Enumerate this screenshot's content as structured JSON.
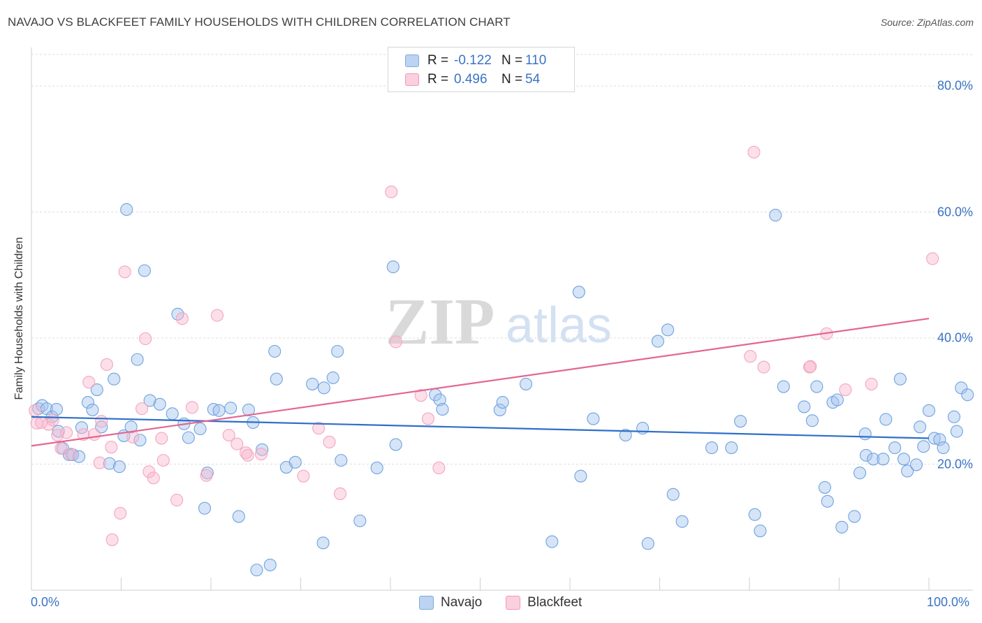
{
  "header": {
    "title": "NAVAJO VS BLACKFEET FAMILY HOUSEHOLDS WITH CHILDREN CORRELATION CHART",
    "source": "Source: ZipAtlas.com"
  },
  "watermark": {
    "zip": "ZIP",
    "atlas": "atlas"
  },
  "legend": {
    "navajo": {
      "r_label": "R =",
      "r_value": "-0.122",
      "n_label": "N =",
      "n_value": "110"
    },
    "blackfeet": {
      "r_label": "R =",
      "r_value": "0.496",
      "n_label": "N =",
      "n_value": "54"
    }
  },
  "chart_data": {
    "type": "scatter",
    "title": "NAVAJO VS BLACKFEET FAMILY HOUSEHOLDS WITH CHILDREN CORRELATION CHART",
    "ylabel": "Family Households with Children",
    "xlim": [
      0,
      100
    ],
    "ylim": [
      0,
      85
    ],
    "x_tick_labels": [
      "0.0%",
      "100.0%"
    ],
    "y_ticks": [
      {
        "value": 20,
        "label": "20.0%"
      },
      {
        "value": 40,
        "label": "40.0%"
      },
      {
        "value": 60,
        "label": "60.0%"
      },
      {
        "value": 80,
        "label": "80.0%"
      }
    ],
    "grid": true,
    "legend_position": "top-center",
    "series": [
      {
        "name": "Navajo",
        "color": "#6ea3e0",
        "line_color": "#2f6fc9",
        "trend": {
          "x": [
            0,
            100
          ],
          "y": [
            27.5,
            24.1
          ]
        },
        "points": [
          [
            0.8,
            28.8
          ],
          [
            1.2,
            29.3
          ],
          [
            1.7,
            28.8
          ],
          [
            2.3,
            27.5
          ],
          [
            2.8,
            28.7
          ],
          [
            3.0,
            25.2
          ],
          [
            3.5,
            22.5
          ],
          [
            4.2,
            21.5
          ],
          [
            4.6,
            21.5
          ],
          [
            5.3,
            21.2
          ],
          [
            5.6,
            25.8
          ],
          [
            6.3,
            29.8
          ],
          [
            6.8,
            28.6
          ],
          [
            7.3,
            31.8
          ],
          [
            7.8,
            25.9
          ],
          [
            8.7,
            20.1
          ],
          [
            9.2,
            33.5
          ],
          [
            9.8,
            19.6
          ],
          [
            10.3,
            24.5
          ],
          [
            10.6,
            60.4
          ],
          [
            11.1,
            25.9
          ],
          [
            11.8,
            36.6
          ],
          [
            12.1,
            23.8
          ],
          [
            12.6,
            50.7
          ],
          [
            13.2,
            30.1
          ],
          [
            14.3,
            29.5
          ],
          [
            15.7,
            28.0
          ],
          [
            16.3,
            43.8
          ],
          [
            17.0,
            26.4
          ],
          [
            17.5,
            24.2
          ],
          [
            18.8,
            25.6
          ],
          [
            19.3,
            13.0
          ],
          [
            19.6,
            18.6
          ],
          [
            20.3,
            28.7
          ],
          [
            20.9,
            28.5
          ],
          [
            22.2,
            28.9
          ],
          [
            23.1,
            11.7
          ],
          [
            24.2,
            28.6
          ],
          [
            24.7,
            26.6
          ],
          [
            25.1,
            3.2
          ],
          [
            25.7,
            22.3
          ],
          [
            26.6,
            4.0
          ],
          [
            27.1,
            37.9
          ],
          [
            27.3,
            33.5
          ],
          [
            28.4,
            19.5
          ],
          [
            29.4,
            20.3
          ],
          [
            31.3,
            32.7
          ],
          [
            32.5,
            7.5
          ],
          [
            32.6,
            32.1
          ],
          [
            33.6,
            33.7
          ],
          [
            34.1,
            37.9
          ],
          [
            34.5,
            20.6
          ],
          [
            36.6,
            11.0
          ],
          [
            38.5,
            19.4
          ],
          [
            40.3,
            51.3
          ],
          [
            40.6,
            23.1
          ],
          [
            45.0,
            31.0
          ],
          [
            45.5,
            30.2
          ],
          [
            45.8,
            28.7
          ],
          [
            52.2,
            28.6
          ],
          [
            52.5,
            29.8
          ],
          [
            55.1,
            32.7
          ],
          [
            58.0,
            7.7
          ],
          [
            61.0,
            47.3
          ],
          [
            61.2,
            18.1
          ],
          [
            62.6,
            27.2
          ],
          [
            66.2,
            24.6
          ],
          [
            68.1,
            25.7
          ],
          [
            68.7,
            7.4
          ],
          [
            69.8,
            39.5
          ],
          [
            70.9,
            41.3
          ],
          [
            71.5,
            15.2
          ],
          [
            72.5,
            10.9
          ],
          [
            75.8,
            22.6
          ],
          [
            78.0,
            22.6
          ],
          [
            79.0,
            26.8
          ],
          [
            80.6,
            12.0
          ],
          [
            81.2,
            9.4
          ],
          [
            82.9,
            59.5
          ],
          [
            83.8,
            32.3
          ],
          [
            86.1,
            29.1
          ],
          [
            87.0,
            26.9
          ],
          [
            87.5,
            32.3
          ],
          [
            88.4,
            16.3
          ],
          [
            88.7,
            14.1
          ],
          [
            89.3,
            29.8
          ],
          [
            89.8,
            30.2
          ],
          [
            90.3,
            10.0
          ],
          [
            91.7,
            11.7
          ],
          [
            92.3,
            18.6
          ],
          [
            92.9,
            24.8
          ],
          [
            93.0,
            21.4
          ],
          [
            93.8,
            20.8
          ],
          [
            94.9,
            20.8
          ],
          [
            95.2,
            27.1
          ],
          [
            96.2,
            22.6
          ],
          [
            96.8,
            33.5
          ],
          [
            97.2,
            20.8
          ],
          [
            97.6,
            18.9
          ],
          [
            98.6,
            19.9
          ],
          [
            99.0,
            25.9
          ],
          [
            99.4,
            22.8
          ],
          [
            100.0,
            28.5
          ],
          [
            100.6,
            24.1
          ],
          [
            101.2,
            23.9
          ],
          [
            101.6,
            22.6
          ],
          [
            102.8,
            27.5
          ],
          [
            103.1,
            25.2
          ],
          [
            103.6,
            32.1
          ],
          [
            104.3,
            31.0
          ]
        ]
      },
      {
        "name": "Blackfeet",
        "color": "#f4a6bf",
        "line_color": "#e46690",
        "trend": {
          "x": [
            0,
            100
          ],
          "y": [
            22.9,
            43.1
          ]
        },
        "points": [
          [
            0.4,
            28.5
          ],
          [
            0.6,
            26.5
          ],
          [
            1.1,
            26.6
          ],
          [
            1.9,
            26.3
          ],
          [
            2.4,
            27.0
          ],
          [
            2.9,
            24.6
          ],
          [
            3.3,
            22.5
          ],
          [
            3.9,
            25.0
          ],
          [
            4.4,
            21.6
          ],
          [
            5.8,
            24.7
          ],
          [
            6.4,
            33.0
          ],
          [
            7.0,
            24.7
          ],
          [
            7.6,
            20.2
          ],
          [
            7.8,
            26.8
          ],
          [
            8.4,
            35.8
          ],
          [
            8.9,
            22.7
          ],
          [
            9.0,
            8.0
          ],
          [
            9.9,
            12.2
          ],
          [
            10.4,
            50.5
          ],
          [
            11.3,
            24.3
          ],
          [
            12.3,
            28.8
          ],
          [
            12.7,
            39.9
          ],
          [
            13.1,
            18.8
          ],
          [
            13.6,
            17.8
          ],
          [
            14.5,
            24.1
          ],
          [
            14.7,
            20.6
          ],
          [
            16.2,
            14.3
          ],
          [
            16.8,
            43.1
          ],
          [
            17.9,
            29.0
          ],
          [
            19.5,
            18.2
          ],
          [
            20.7,
            43.6
          ],
          [
            22.0,
            24.6
          ],
          [
            22.9,
            23.2
          ],
          [
            23.9,
            21.8
          ],
          [
            24.1,
            21.4
          ],
          [
            25.6,
            21.6
          ],
          [
            30.3,
            18.1
          ],
          [
            32.0,
            25.7
          ],
          [
            33.2,
            23.5
          ],
          [
            34.4,
            15.3
          ],
          [
            40.1,
            63.2
          ],
          [
            40.6,
            39.4
          ],
          [
            43.4,
            30.9
          ],
          [
            44.2,
            27.2
          ],
          [
            45.4,
            19.4
          ],
          [
            80.1,
            37.1
          ],
          [
            80.5,
            69.5
          ],
          [
            81.6,
            35.4
          ],
          [
            86.7,
            35.4
          ],
          [
            86.8,
            35.5
          ],
          [
            88.6,
            40.7
          ],
          [
            90.7,
            31.8
          ],
          [
            93.6,
            32.7
          ],
          [
            100.4,
            52.6
          ]
        ]
      }
    ]
  }
}
